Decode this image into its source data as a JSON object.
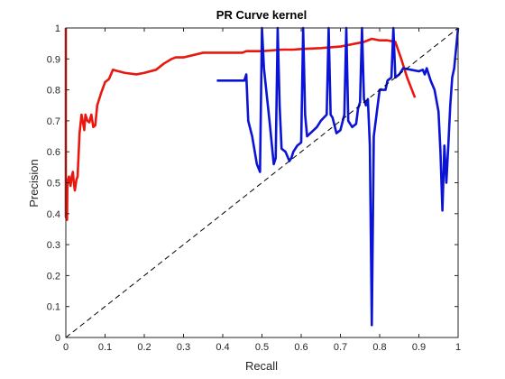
{
  "chart_data": {
    "type": "line",
    "title": "PR Curve kernel",
    "xlabel": "Recall",
    "ylabel": "Precision",
    "xlim": [
      0,
      1
    ],
    "ylim": [
      0,
      1
    ],
    "xticks": [
      "0",
      "0.1",
      "0.2",
      "0.3",
      "0.4",
      "0.5",
      "0.6",
      "0.7",
      "0.8",
      "0.9",
      "1"
    ],
    "yticks": [
      "0",
      "0.1",
      "0.2",
      "0.3",
      "0.4",
      "0.5",
      "0.6",
      "0.7",
      "0.8",
      "0.9",
      "1"
    ],
    "grid": false,
    "legend": null,
    "series": [
      {
        "color": "#e8180f",
        "style": "solid",
        "points": [
          [
            0.0,
            1.0
          ],
          [
            0.0,
            0.39
          ],
          [
            0.003,
            0.38
          ],
          [
            0.004,
            0.5
          ],
          [
            0.008,
            0.52
          ],
          [
            0.01,
            0.5
          ],
          [
            0.012,
            0.49
          ],
          [
            0.015,
            0.52
          ],
          [
            0.018,
            0.535
          ],
          [
            0.02,
            0.505
          ],
          [
            0.023,
            0.475
          ],
          [
            0.027,
            0.51
          ],
          [
            0.03,
            0.52
          ],
          [
            0.035,
            0.66
          ],
          [
            0.04,
            0.72
          ],
          [
            0.043,
            0.7
          ],
          [
            0.047,
            0.67
          ],
          [
            0.05,
            0.72
          ],
          [
            0.055,
            0.7
          ],
          [
            0.06,
            0.695
          ],
          [
            0.065,
            0.72
          ],
          [
            0.07,
            0.68
          ],
          [
            0.075,
            0.685
          ],
          [
            0.08,
            0.75
          ],
          [
            0.09,
            0.79
          ],
          [
            0.1,
            0.825
          ],
          [
            0.11,
            0.835
          ],
          [
            0.12,
            0.865
          ],
          [
            0.15,
            0.855
          ],
          [
            0.18,
            0.85
          ],
          [
            0.2,
            0.855
          ],
          [
            0.23,
            0.865
          ],
          [
            0.25,
            0.885
          ],
          [
            0.27,
            0.9
          ],
          [
            0.28,
            0.905
          ],
          [
            0.3,
            0.905
          ],
          [
            0.35,
            0.92
          ],
          [
            0.45,
            0.92
          ],
          [
            0.46,
            0.925
          ],
          [
            0.5,
            0.925
          ],
          [
            0.55,
            0.93
          ],
          [
            0.58,
            0.93
          ],
          [
            0.6,
            0.932
          ],
          [
            0.65,
            0.935
          ],
          [
            0.7,
            0.94
          ],
          [
            0.72,
            0.945
          ],
          [
            0.76,
            0.955
          ],
          [
            0.78,
            0.965
          ],
          [
            0.8,
            0.96
          ],
          [
            0.82,
            0.96
          ],
          [
            0.84,
            0.955
          ],
          [
            0.855,
            0.9
          ],
          [
            0.87,
            0.84
          ],
          [
            0.89,
            0.775
          ]
        ]
      },
      {
        "color": "#0a13d6",
        "style": "solid",
        "points": [
          [
            0.385,
            0.83
          ],
          [
            0.43,
            0.83
          ],
          [
            0.455,
            0.83
          ],
          [
            0.46,
            0.85
          ],
          [
            0.465,
            0.7
          ],
          [
            0.475,
            0.65
          ],
          [
            0.487,
            0.56
          ],
          [
            0.495,
            0.535
          ],
          [
            0.5,
            1.0
          ],
          [
            0.505,
            0.87
          ],
          [
            0.52,
            0.69
          ],
          [
            0.53,
            0.56
          ],
          [
            0.535,
            0.58
          ],
          [
            0.54,
            1.0
          ],
          [
            0.545,
            0.75
          ],
          [
            0.55,
            0.61
          ],
          [
            0.56,
            0.6
          ],
          [
            0.57,
            0.57
          ],
          [
            0.575,
            0.58
          ],
          [
            0.58,
            0.6
          ],
          [
            0.59,
            0.62
          ],
          [
            0.6,
            0.63
          ],
          [
            0.605,
            1.0
          ],
          [
            0.61,
            0.72
          ],
          [
            0.615,
            0.65
          ],
          [
            0.64,
            0.68
          ],
          [
            0.65,
            0.7
          ],
          [
            0.665,
            0.72
          ],
          [
            0.67,
            1.0
          ],
          [
            0.675,
            0.72
          ],
          [
            0.68,
            0.71
          ],
          [
            0.69,
            0.66
          ],
          [
            0.7,
            0.67
          ],
          [
            0.71,
            0.72
          ],
          [
            0.715,
            1.0
          ],
          [
            0.72,
            0.7
          ],
          [
            0.73,
            0.68
          ],
          [
            0.74,
            0.69
          ],
          [
            0.745,
            0.74
          ],
          [
            0.75,
            0.76
          ],
          [
            0.755,
            1.0
          ],
          [
            0.76,
            0.77
          ],
          [
            0.765,
            0.75
          ],
          [
            0.77,
            0.77
          ],
          [
            0.775,
            0.62
          ],
          [
            0.78,
            0.04
          ],
          [
            0.785,
            0.65
          ],
          [
            0.8,
            0.8
          ],
          [
            0.81,
            0.8
          ],
          [
            0.815,
            0.8
          ],
          [
            0.82,
            0.83
          ],
          [
            0.83,
            0.84
          ],
          [
            0.835,
            1.0
          ],
          [
            0.84,
            0.84
          ],
          [
            0.85,
            0.85
          ],
          [
            0.86,
            0.87
          ],
          [
            0.88,
            0.865
          ],
          [
            0.9,
            0.86
          ],
          [
            0.91,
            0.865
          ],
          [
            0.915,
            0.85
          ],
          [
            0.92,
            0.87
          ],
          [
            0.93,
            0.83
          ],
          [
            0.94,
            0.8
          ],
          [
            0.95,
            0.73
          ],
          [
            0.955,
            0.6
          ],
          [
            0.96,
            0.41
          ],
          [
            0.965,
            0.62
          ],
          [
            0.97,
            0.5
          ],
          [
            0.975,
            0.62
          ],
          [
            0.98,
            0.75
          ],
          [
            0.985,
            0.84
          ],
          [
            0.99,
            0.87
          ],
          [
            1.0,
            1.0
          ]
        ]
      },
      {
        "color": "#000000",
        "style": "dashed",
        "points": [
          [
            0,
            0
          ],
          [
            1,
            1
          ]
        ]
      }
    ]
  }
}
